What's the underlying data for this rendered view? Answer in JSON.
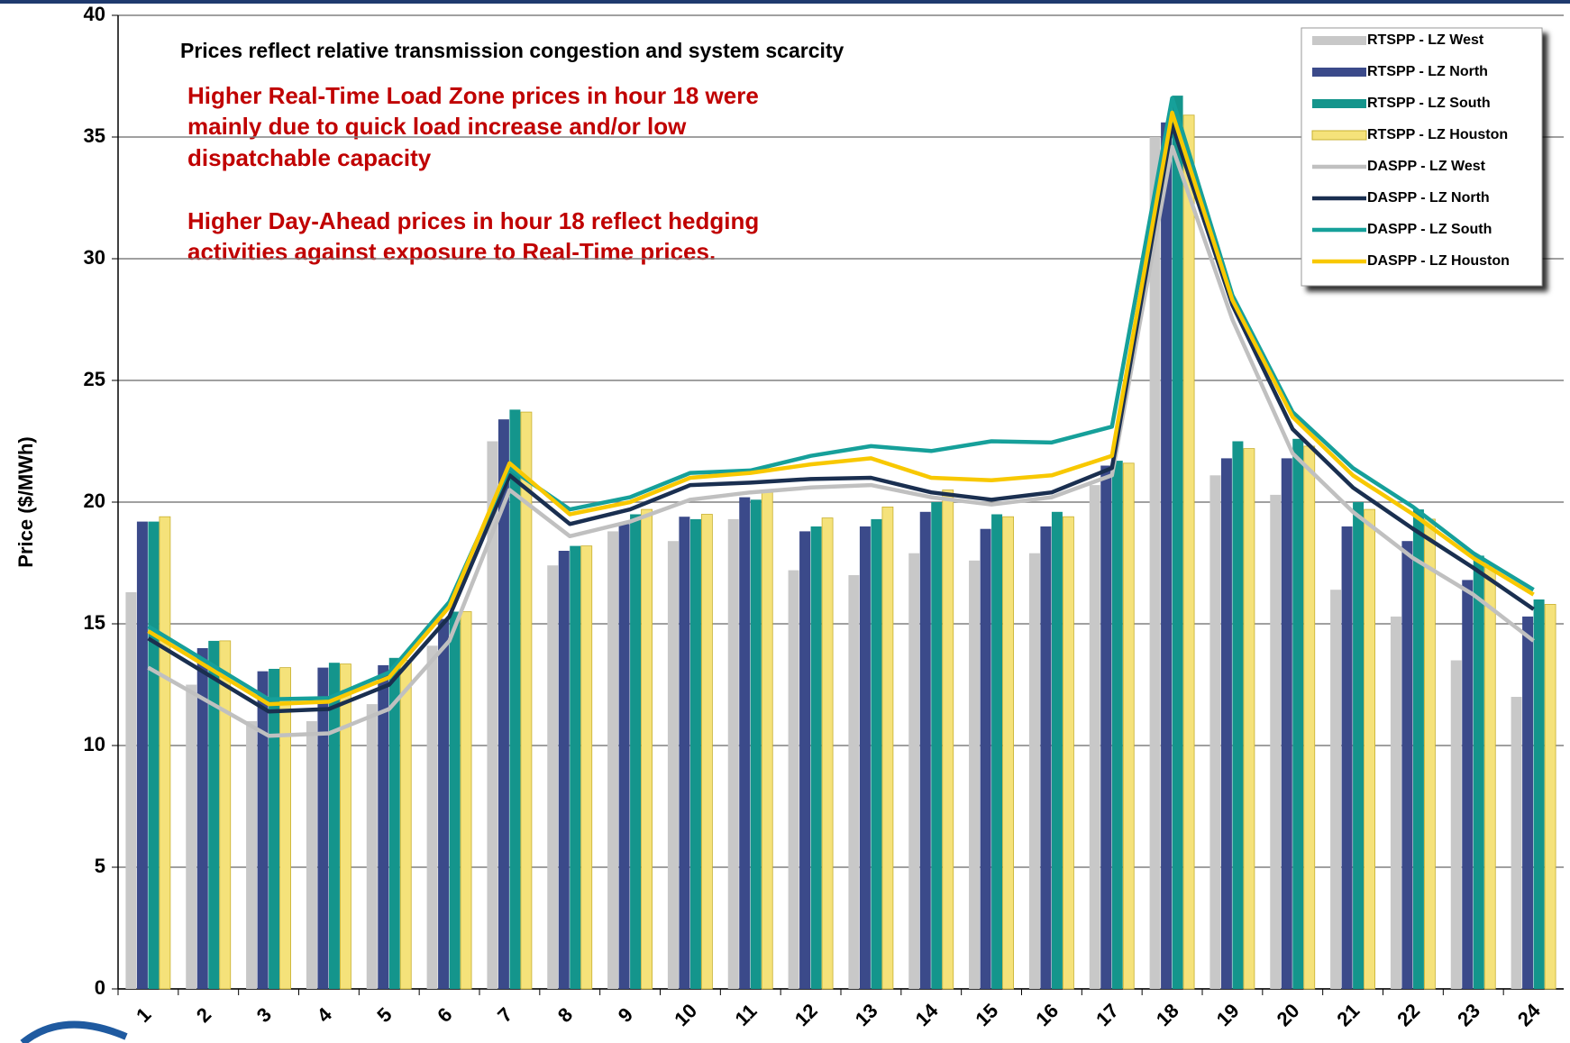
{
  "chart_data": {
    "type": "bar_line",
    "y_label": "Price ($/MWh)",
    "annotations": [
      "Prices reflect relative transmission congestion and system scarcity",
      "Higher Real-Time Load Zone prices in hour 18 were",
      "mainly due to quick load increase and/or low",
      "dispatchable capacity",
      "Higher Day-Ahead prices in hour 18 reflect  hedging",
      "activities against exposure to Real-Time prices."
    ],
    "categories": [
      "1",
      "2",
      "3",
      "4",
      "5",
      "6",
      "7",
      "8",
      "9",
      "10",
      "11",
      "12",
      "13",
      "14",
      "15",
      "16",
      "17",
      "18",
      "19",
      "20",
      "21",
      "22",
      "23",
      "24"
    ],
    "ylim": [
      0,
      40
    ],
    "yticks": [
      0,
      5,
      10,
      15,
      20,
      25,
      30,
      35,
      40
    ],
    "grid": true,
    "series": [
      {
        "name": "RTSPP - LZ West",
        "kind": "bar",
        "color": "#c8c8c8",
        "values": [
          16.3,
          12.5,
          11.0,
          11.0,
          11.7,
          14.1,
          22.5,
          17.4,
          18.8,
          18.4,
          19.3,
          17.2,
          17.0,
          17.9,
          17.6,
          17.9,
          20.7,
          35.0,
          21.1,
          20.3,
          16.4,
          15.3,
          13.5,
          12.0
        ]
      },
      {
        "name": "RTSPP - LZ North",
        "kind": "bar",
        "color": "#3b4a8a",
        "values": [
          19.2,
          14.0,
          13.05,
          13.2,
          13.3,
          15.2,
          23.4,
          18.0,
          19.1,
          19.4,
          20.2,
          18.8,
          19.0,
          19.6,
          18.9,
          19.0,
          21.5,
          35.6,
          21.8,
          21.8,
          19.0,
          18.4,
          16.8,
          15.3
        ]
      },
      {
        "name": "RTSPP - LZ South",
        "kind": "bar",
        "color": "#14958c",
        "values": [
          19.2,
          14.3,
          13.15,
          13.4,
          13.6,
          15.5,
          23.8,
          18.2,
          19.5,
          19.3,
          20.1,
          19.0,
          19.3,
          20.0,
          19.5,
          19.6,
          21.7,
          36.7,
          22.5,
          22.6,
          20.0,
          19.7,
          17.8,
          16.0
        ]
      },
      {
        "name": "RTSPP - LZ Houston",
        "kind": "bar",
        "color": "#f5e27a",
        "values": [
          19.4,
          14.3,
          13.2,
          13.35,
          13.5,
          15.5,
          23.7,
          18.2,
          19.7,
          19.5,
          20.4,
          19.35,
          19.8,
          20.5,
          19.4,
          19.4,
          21.6,
          35.9,
          22.2,
          22.3,
          19.7,
          19.3,
          17.4,
          15.8
        ]
      },
      {
        "name": "DASPP - LZ West",
        "kind": "line",
        "color": "#c0c0c0",
        "values": [
          13.2,
          11.8,
          10.4,
          10.5,
          11.5,
          14.3,
          20.5,
          18.6,
          19.2,
          20.1,
          20.4,
          20.6,
          20.7,
          20.2,
          19.9,
          20.2,
          21.1,
          34.6,
          27.5,
          22.0,
          19.6,
          17.7,
          16.2,
          14.3
        ]
      },
      {
        "name": "DASPP - LZ North",
        "kind": "line",
        "color": "#1a2f50",
        "values": [
          14.4,
          12.9,
          11.4,
          11.5,
          12.5,
          15.3,
          21.1,
          19.1,
          19.7,
          20.7,
          20.8,
          20.95,
          21.0,
          20.4,
          20.1,
          20.4,
          21.4,
          35.5,
          28.1,
          23.0,
          20.6,
          18.9,
          17.3,
          15.6
        ]
      },
      {
        "name": "DASPP - LZ South",
        "kind": "line",
        "color": "#16a09a",
        "values": [
          14.9,
          13.4,
          11.9,
          11.95,
          13.0,
          15.9,
          21.4,
          19.7,
          20.2,
          21.2,
          21.3,
          21.9,
          22.3,
          22.1,
          22.5,
          22.45,
          23.1,
          36.6,
          28.5,
          23.7,
          21.4,
          19.8,
          17.9,
          16.4
        ]
      },
      {
        "name": "DASPP - LZ Houston",
        "kind": "line",
        "color": "#f8c800",
        "values": [
          14.7,
          13.2,
          11.7,
          11.8,
          12.8,
          15.7,
          21.6,
          19.5,
          20.0,
          21.0,
          21.2,
          21.55,
          21.8,
          21.0,
          20.9,
          21.1,
          21.9,
          36.0,
          28.3,
          23.5,
          21.1,
          19.5,
          17.7,
          16.2
        ]
      }
    ]
  }
}
